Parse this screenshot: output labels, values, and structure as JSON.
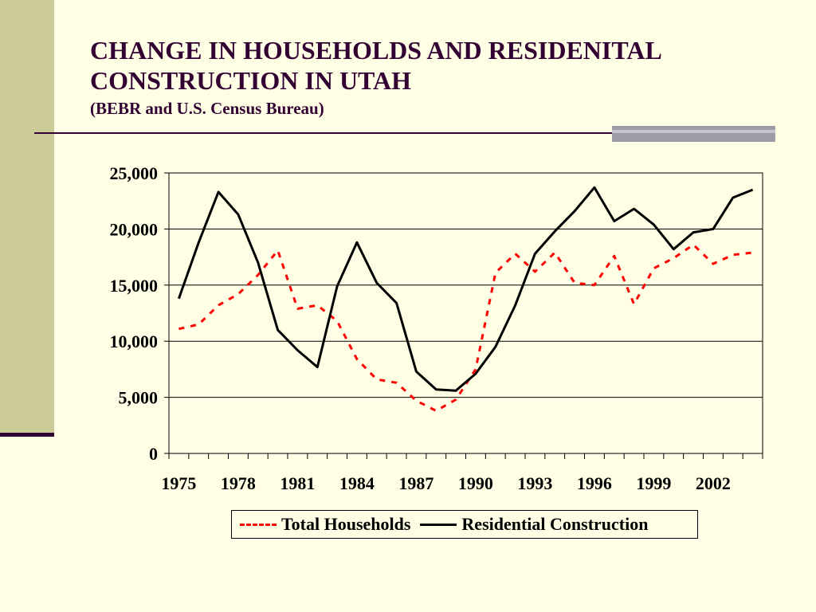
{
  "title": {
    "line1": "CHANGE IN HOUSEHOLDS AND RESIDENITAL",
    "line2": "CONSTRUCTION IN UTAH",
    "subtitle": "(BEBR and U.S. Census Bureau)"
  },
  "colors": {
    "title": "#330033",
    "background": "#FFFFE5",
    "sidebar": "#CCCC99",
    "households": "#FF0000",
    "construction": "#000000"
  },
  "chart_data": {
    "type": "line",
    "title": "CHANGE IN HOUSEHOLDS AND RESIDENITAL CONSTRUCTION IN UTAH",
    "subtitle": "(BEBR and U.S. Census Bureau)",
    "xlabel": "",
    "ylabel": "",
    "ylim": [
      0,
      25000
    ],
    "yticks": [
      0,
      5000,
      10000,
      15000,
      20000,
      25000
    ],
    "ytick_labels": [
      "0",
      "5,000",
      "10,000",
      "15,000",
      "20,000",
      "25,000"
    ],
    "xlim": [
      1974.5,
      2004.5
    ],
    "xtick_labels": [
      "1975",
      "1978",
      "1981",
      "1984",
      "1987",
      "1990",
      "1993",
      "1996",
      "1999",
      "2002"
    ],
    "grid": "horizontal",
    "legend": "bottom",
    "x": [
      1975,
      1976,
      1977,
      1978,
      1979,
      1980,
      1981,
      1982,
      1983,
      1984,
      1985,
      1986,
      1987,
      1988,
      1989,
      1990,
      1991,
      1992,
      1993,
      1994,
      1995,
      1996,
      1997,
      1998,
      1999,
      2000,
      2001,
      2002,
      2003,
      2004
    ],
    "series": [
      {
        "name": "Total Households",
        "style": "dashed",
        "color": "#FF0000",
        "values": [
          11100,
          11500,
          13200,
          14200,
          15900,
          18100,
          12900,
          13200,
          11800,
          8400,
          6600,
          6300,
          4700,
          3800,
          4800,
          7500,
          16100,
          17800,
          16200,
          17900,
          15200,
          15000,
          17600,
          13300,
          16500,
          17400,
          18600,
          16900,
          17700,
          17900
        ]
      },
      {
        "name": "Residential Construction",
        "style": "solid",
        "color": "#000000",
        "values": [
          13800,
          18800,
          23300,
          21300,
          17000,
          11000,
          9200,
          7700,
          14900,
          18800,
          15200,
          13400,
          7300,
          5700,
          5600,
          7100,
          9500,
          13200,
          17800,
          19800,
          21600,
          23700,
          20700,
          21800,
          20400,
          18200,
          19700,
          20000,
          22800,
          23500
        ]
      }
    ]
  }
}
